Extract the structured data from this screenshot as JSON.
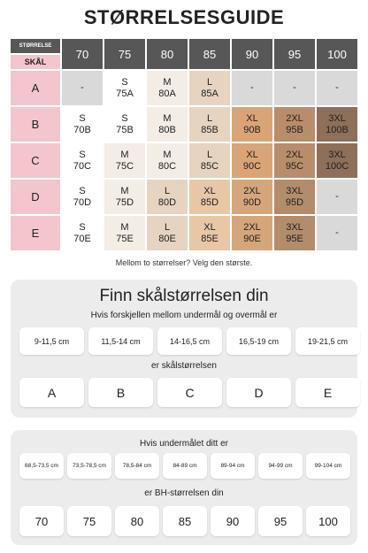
{
  "header": {
    "title": "STØRRELSESGUIDE"
  },
  "table": {
    "corner_top": "STØRRELSE",
    "corner_bottom": "SKÅL",
    "columns": [
      "70",
      "75",
      "80",
      "85",
      "90",
      "95",
      "100"
    ],
    "rows": [
      {
        "label": "A",
        "cells": [
          {
            "size": "-",
            "color": "#d9d9d9"
          },
          {
            "size": "S",
            "code": "75A",
            "color": "#ffffff"
          },
          {
            "size": "M",
            "code": "80A",
            "color": "#f3ede6"
          },
          {
            "size": "L",
            "code": "85A",
            "color": "#e6d4c0"
          },
          {
            "size": "-",
            "color": "#d9d9d9"
          },
          {
            "size": "-",
            "color": "#d9d9d9"
          },
          {
            "size": "-",
            "color": "#d9d9d9"
          }
        ]
      },
      {
        "label": "B",
        "cells": [
          {
            "size": "S",
            "code": "70B",
            "color": "#ffffff"
          },
          {
            "size": "S",
            "code": "75B",
            "color": "#ffffff"
          },
          {
            "size": "M",
            "code": "80B",
            "color": "#f3ede6"
          },
          {
            "size": "L",
            "code": "85B",
            "color": "#e6d4c0"
          },
          {
            "size": "XL",
            "code": "90B",
            "color": "#d9a577"
          },
          {
            "size": "2XL",
            "code": "95B",
            "color": "#b88d6b"
          },
          {
            "size": "3XL",
            "code": "100B",
            "color": "#8d6f5a"
          }
        ]
      },
      {
        "label": "C",
        "cells": [
          {
            "size": "S",
            "code": "70C",
            "color": "#ffffff"
          },
          {
            "size": "M",
            "code": "75C",
            "color": "#f3ede6"
          },
          {
            "size": "M",
            "code": "80C",
            "color": "#f3ede6"
          },
          {
            "size": "L",
            "code": "85C",
            "color": "#e6d4c0"
          },
          {
            "size": "XL",
            "code": "90C",
            "color": "#d9a577"
          },
          {
            "size": "2XL",
            "code": "95C",
            "color": "#b88d6b"
          },
          {
            "size": "3XL",
            "code": "100C",
            "color": "#8d6f5a"
          }
        ]
      },
      {
        "label": "D",
        "cells": [
          {
            "size": "S",
            "code": "70D",
            "color": "#ffffff"
          },
          {
            "size": "M",
            "code": "75D",
            "color": "#f3ede6"
          },
          {
            "size": "L",
            "code": "80D",
            "color": "#e6d4c0"
          },
          {
            "size": "XL",
            "code": "85D",
            "color": "#e8c7a6"
          },
          {
            "size": "2XL",
            "code": "90D",
            "color": "#d6a67b"
          },
          {
            "size": "3XL",
            "code": "95D",
            "color": "#b38c6c"
          },
          {
            "size": "-",
            "color": "#d9d9d9"
          }
        ]
      },
      {
        "label": "E",
        "cells": [
          {
            "size": "S",
            "code": "70E",
            "color": "#ffffff"
          },
          {
            "size": "M",
            "code": "75E",
            "color": "#f3ede6"
          },
          {
            "size": "L",
            "code": "80E",
            "color": "#e6d4c0"
          },
          {
            "size": "XL",
            "code": "85E",
            "color": "#e8c7a6"
          },
          {
            "size": "2XL",
            "code": "90E",
            "color": "#d6a67b"
          },
          {
            "size": "3XL",
            "code": "95E",
            "color": "#b38c6c"
          },
          {
            "size": "-",
            "color": "#d9d9d9"
          }
        ]
      }
    ]
  },
  "note": "Mellom to størrelser? Velg den største.",
  "cup_panel": {
    "title": "Finn skålstørrelsen din",
    "intro": "Hvis forskjellen mellom undermål og overmål er",
    "differences": [
      "9-11,5 cm",
      "11,5-14 cm",
      "14-16,5 cm",
      "16,5-19 cm",
      "19-21,5 cm"
    ],
    "middle": "er skålstørrelsen",
    "cups": [
      "A",
      "B",
      "C",
      "D",
      "E"
    ]
  },
  "band_panel": {
    "intro": "Hvis undermålet ditt er",
    "underbust": [
      "68,5-73,5 cm",
      "73,5-78,5 cm",
      "78,5-84 cm",
      "84-89 cm",
      "89-94 cm",
      "94-99 cm",
      "99-104 cm"
    ],
    "middle": "er BH-størrelsen din",
    "bands": [
      "70",
      "75",
      "80",
      "85",
      "90",
      "95",
      "100"
    ]
  }
}
